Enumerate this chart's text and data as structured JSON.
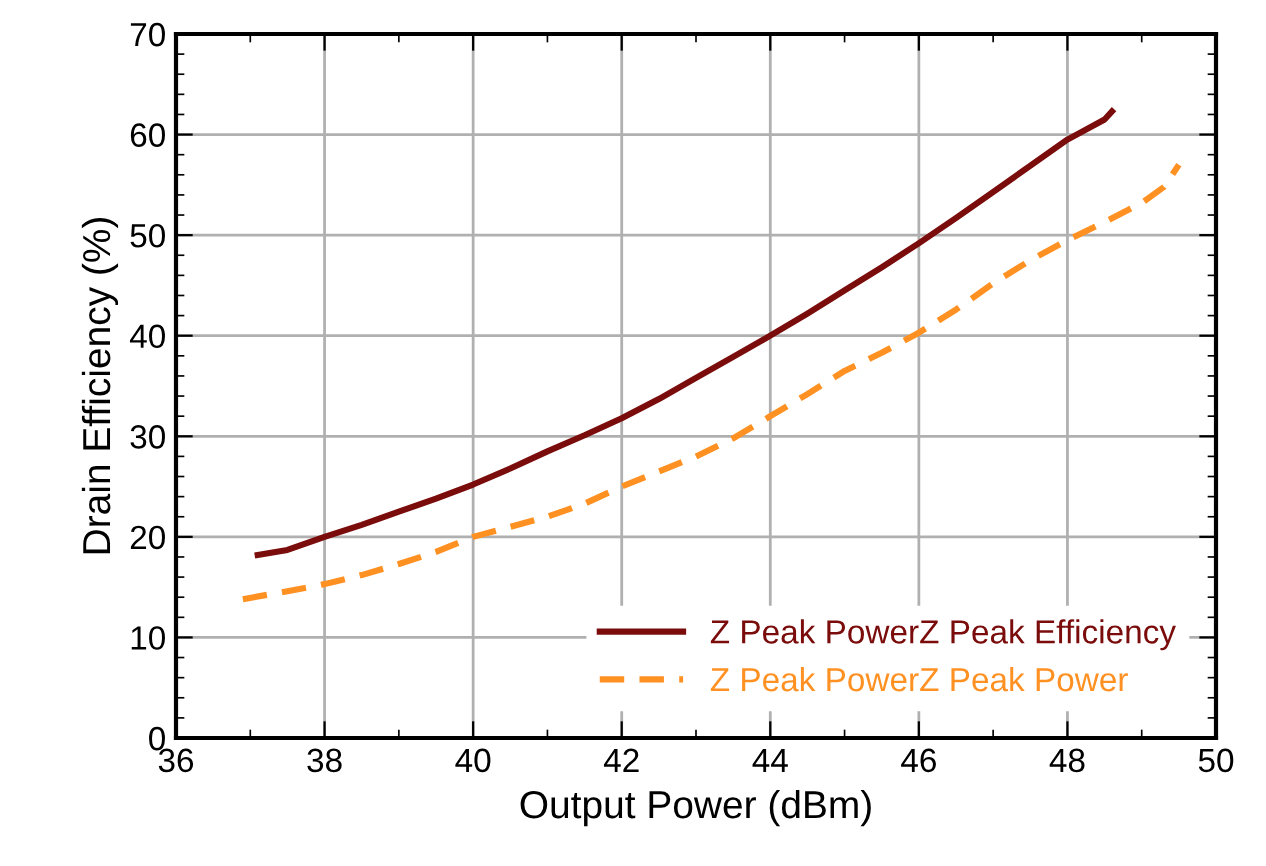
{
  "chart_data": {
    "type": "line",
    "xlabel": "Output Power (dBm)",
    "ylabel": "Drain Efficiency (%)",
    "xlim": [
      36,
      50
    ],
    "xticks": [
      36,
      38,
      40,
      42,
      44,
      46,
      48,
      50
    ],
    "ylim": [
      0,
      70
    ],
    "yticks": [
      0,
      10,
      20,
      30,
      40,
      50,
      60,
      70
    ],
    "grid": true,
    "legend": "bottom right",
    "series": [
      {
        "name": "Z Peak PowerZ Peak Efficiency",
        "color": "#7b0c0c",
        "line_style": "solid",
        "x": [
          37.1,
          37.5,
          38,
          38.5,
          39,
          39.5,
          40,
          40.5,
          41,
          41.5,
          42,
          42.5,
          43,
          43.5,
          44,
          44.5,
          45,
          45.5,
          46,
          46.5,
          47,
          47.5,
          48,
          48.5,
          48.6
        ],
        "values": [
          18.2,
          18.7,
          20,
          21.2,
          22.5,
          23.8,
          25.2,
          26.8,
          28.5,
          30.1,
          31.8,
          33.7,
          35.8,
          37.9,
          40,
          42.2,
          44.5,
          46.8,
          49.2,
          51.7,
          54.3,
          56.9,
          59.5,
          61.5,
          62.3
        ]
      },
      {
        "name": "Z Peak PowerZ Peak Power",
        "color": "#ff9022",
        "line_style": "dashed",
        "x": [
          36.9,
          37.5,
          38,
          38.5,
          39,
          39.5,
          40,
          40.5,
          41,
          41.5,
          42,
          42.5,
          43,
          43.5,
          44,
          44.5,
          45,
          45.5,
          46,
          46.5,
          47,
          47.5,
          48,
          48.5,
          49,
          49.3,
          49.5
        ],
        "values": [
          13.8,
          14.6,
          15.3,
          16.2,
          17.3,
          18.5,
          20,
          21,
          22,
          23.3,
          25,
          26.5,
          28,
          29.8,
          32,
          34.2,
          36.5,
          38.3,
          40.3,
          42.6,
          45.2,
          47.5,
          49.5,
          51.3,
          53.2,
          54.8,
          57
        ]
      }
    ]
  }
}
